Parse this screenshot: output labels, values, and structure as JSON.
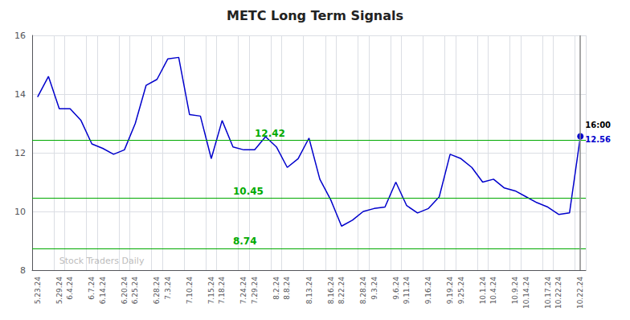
{
  "chart_data": {
    "type": "line",
    "title": "METC Long Term Signals",
    "categories": [
      "5.23.24",
      null,
      "5.29.24",
      "6.4.24",
      null,
      "6.7.24",
      "6.14.24",
      null,
      "6.20.24",
      "6.25.24",
      null,
      "6.28.24",
      "7.3.24",
      null,
      "7.10.24",
      null,
      "7.15.24",
      "7.18.24",
      null,
      "7.24.24",
      "7.29.24",
      null,
      "8.2.24",
      "8.8.24",
      null,
      "8.13.24",
      null,
      "8.16.24",
      "8.22.24",
      null,
      "8.28.24",
      "9.3.24",
      null,
      "9.6.24",
      "9.11.24",
      null,
      "9.16.24",
      null,
      "9.19.24",
      "9.25.24",
      null,
      "10.1.24",
      "10.4.24",
      null,
      "10.9.24",
      "10.14.24",
      null,
      "10.17.24",
      "10.22.24",
      null,
      "10.22.24"
    ],
    "values": [
      13.9,
      14.6,
      13.5,
      13.5,
      13.1,
      12.3,
      12.15,
      11.95,
      12.1,
      13.0,
      14.3,
      14.5,
      15.2,
      15.25,
      13.3,
      13.25,
      11.8,
      13.1,
      12.2,
      12.1,
      12.1,
      12.55,
      12.2,
      11.5,
      11.8,
      12.5,
      11.1,
      10.4,
      9.5,
      9.7,
      10.0,
      10.1,
      10.15,
      11.0,
      10.2,
      9.95,
      10.1,
      10.5,
      11.95,
      11.8,
      11.5,
      11.0,
      11.1,
      10.8,
      10.7,
      10.5,
      10.3,
      10.15,
      9.9,
      9.95,
      12.56
    ],
    "color": "#0000cc",
    "ylim": [
      8,
      16
    ],
    "yticks": [
      8,
      10,
      12,
      14,
      16
    ],
    "grid": true,
    "hlines": [
      {
        "y": 12.42,
        "label": "12.42",
        "color": "#00aa00",
        "label_x": 20
      },
      {
        "y": 10.45,
        "label": "10.45",
        "color": "#00aa00",
        "label_x": 18
      },
      {
        "y": 8.74,
        "label": "8.74",
        "color": "#00aa00",
        "label_x": 18
      }
    ],
    "vlines": [
      {
        "x": 50,
        "color": "#888888"
      }
    ],
    "annotations": [
      {
        "text": "Stock Traders Daily",
        "x": 2,
        "y": 8.12,
        "color": "#aaaaaa"
      },
      {
        "text": "16:00",
        "x": 50,
        "y": 12.56,
        "color": "#000000"
      },
      {
        "text": "12.56",
        "x": 50,
        "y": 12.56,
        "color": "#0000cc"
      }
    ]
  }
}
